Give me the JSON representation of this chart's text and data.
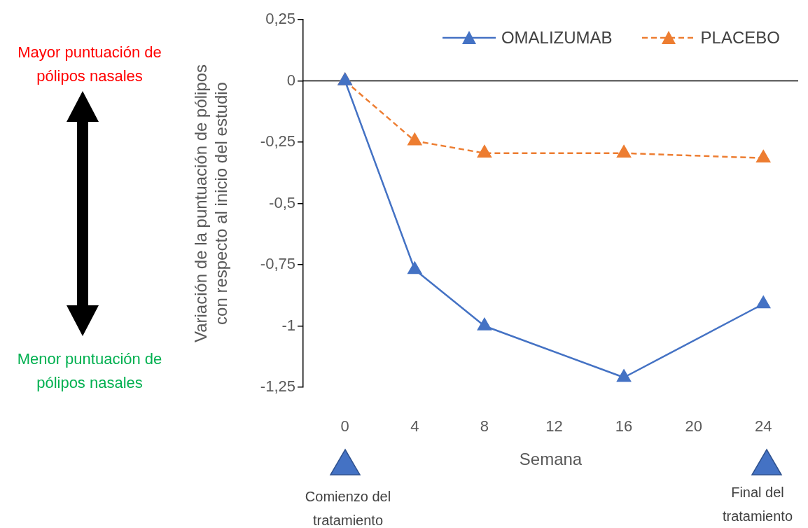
{
  "chart_data": {
    "type": "line",
    "xlabel": "Semana",
    "ylabel": "Variación de la puntuación de pólipos\ncon respecto al inicio del estudio",
    "x": [
      0,
      4,
      8,
      16,
      24
    ],
    "series": [
      {
        "name": "OMALIZUMAB",
        "color": "#4472c4",
        "values": [
          0,
          -0.77,
          -1.0,
          -1.21,
          -0.91
        ],
        "line_style": "solid"
      },
      {
        "name": "PLACEBO",
        "color": "#ed7d31",
        "values": [
          0,
          -0.245,
          -0.295,
          -0.295,
          -0.315
        ],
        "line_style": "dashed"
      }
    ],
    "xlim": [
      -2.4,
      26
    ],
    "xticks": [
      0,
      4,
      8,
      12,
      16,
      20,
      24
    ],
    "ylim": [
      -1.25,
      0.25
    ],
    "yticks": [
      {
        "value": -1.25,
        "label": "-1,25"
      },
      -1,
      {
        "value": -0.75,
        "label": "-0,75"
      },
      {
        "value": -0.5,
        "label": "-0,5"
      },
      {
        "value": -0.25,
        "label": "-0,25"
      },
      0,
      {
        "value": 0.25,
        "label": "0,25"
      }
    ],
    "grid": false,
    "ref_lines": [
      {
        "axis": "y",
        "value": 0,
        "color": "#000000",
        "line_style": "solid"
      }
    ],
    "legend": "top right",
    "marker": "triangle",
    "annotations": [
      "Mayor puntuación de pólipos nasales",
      "Menor puntuación de pólipos nasales",
      "Comienzo del tratamiento",
      "Final del tratamiento"
    ]
  }
}
